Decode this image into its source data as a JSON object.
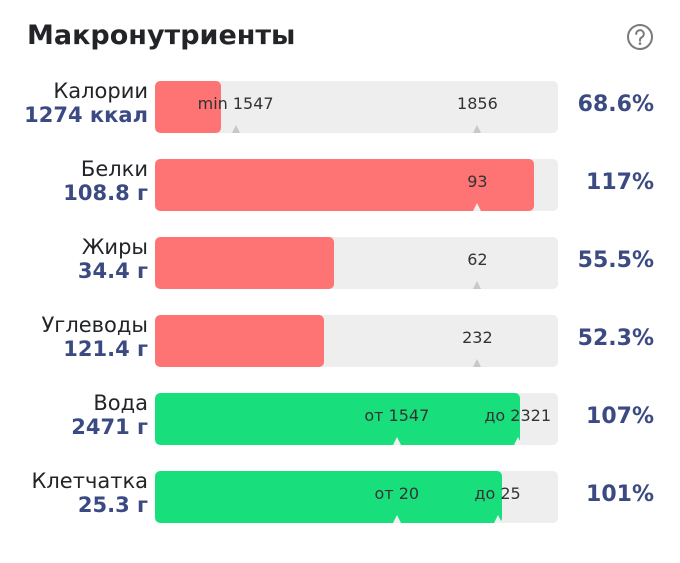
{
  "header": {
    "title": "Макронутриенты",
    "help_icon": "question-circle-icon"
  },
  "colors": {
    "below_target": "#fe7373",
    "in_range": "#18df7c",
    "track": "#eeeeef",
    "value_text": "#3b4a82"
  },
  "rows": [
    {
      "name": "Калории",
      "value": "1274 ккал",
      "percent": "68.6%",
      "fill_color": "red",
      "fill_fraction": 0.163,
      "markers": [
        {
          "label": "min 1547",
          "fraction": 0.2
        },
        {
          "label": "1856",
          "fraction": 0.8
        }
      ]
    },
    {
      "name": "Белки",
      "value": "108.8 г",
      "percent": "117%",
      "fill_color": "red",
      "fill_fraction": 0.94,
      "markers": [
        {
          "label": "93",
          "fraction": 0.8
        }
      ]
    },
    {
      "name": "Жиры",
      "value": "34.4 г",
      "percent": "55.5%",
      "fill_color": "red",
      "fill_fraction": 0.444,
      "markers": [
        {
          "label": "62",
          "fraction": 0.8
        }
      ]
    },
    {
      "name": "Углеводы",
      "value": "121.4 г",
      "percent": "52.3%",
      "fill_color": "red",
      "fill_fraction": 0.419,
      "markers": [
        {
          "label": "232",
          "fraction": 0.8
        }
      ]
    },
    {
      "name": "Вода",
      "value": "2471 г",
      "percent": "107%",
      "fill_color": "green",
      "fill_fraction": 0.906,
      "markers": [
        {
          "label": "от 1547",
          "fraction": 0.6
        },
        {
          "label": "до 2321",
          "fraction": 0.9
        }
      ]
    },
    {
      "name": "Клетчатка",
      "value": "25.3 г",
      "percent": "101%",
      "fill_color": "green",
      "fill_fraction": 0.86,
      "markers": [
        {
          "label": "от 20",
          "fraction": 0.6
        },
        {
          "label": "до 25",
          "fraction": 0.85
        }
      ]
    }
  ]
}
